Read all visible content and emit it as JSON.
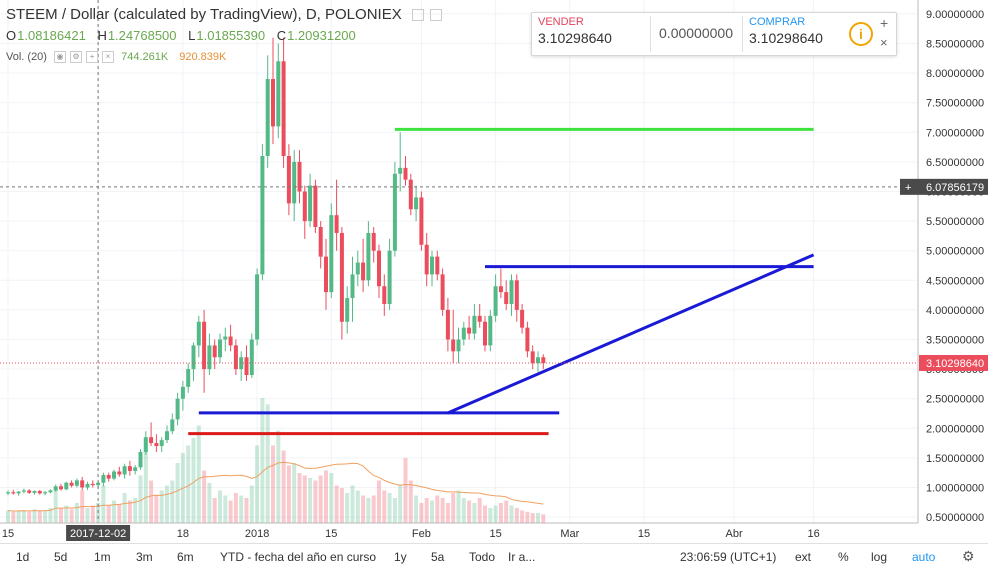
{
  "header": {
    "title": "STEEM / Dollar (calculated by TradingView), D, POLONIEX",
    "ohlc": [
      {
        "label": "O",
        "value": "1.08186421"
      },
      {
        "label": "H",
        "value": "1.24768500"
      },
      {
        "label": "L",
        "value": "1.01855390"
      },
      {
        "label": "C",
        "value": "1.20931200"
      }
    ],
    "volume_label": "Vol. (20)",
    "volume_value": "744.261K",
    "volume_ma": "920.839K"
  },
  "trade": {
    "sell_label": "VENDER",
    "sell_price": "3.10298640",
    "spread": "0.00000000",
    "buy_label": "COMPRAR",
    "buy_price": "3.10298640"
  },
  "crosshair_price": "6.07856179",
  "last_price": "3.10298640",
  "toolbar": {
    "ranges": [
      "1d",
      "5d",
      "1m",
      "3m",
      "6m",
      "YTD - fecha del año en curso",
      "1y",
      "5a",
      "Todo",
      "Ir a..."
    ],
    "time": "23:06:59 (UTC+1)",
    "ext": "ext",
    "pct": "%",
    "log": "log",
    "auto": "auto"
  },
  "colors": {
    "up": "#53b987",
    "down": "#eb4d5c",
    "blue": "#1a1ad6",
    "green": "#3fe33f",
    "red": "#dd1a1a",
    "last_price": "#eb4d5c",
    "volume_ma": "#f0a060",
    "accent": "#2196f3"
  },
  "chart_data": {
    "type": "candlestick",
    "symbol": "STEEM / Dollar",
    "interval": "D",
    "ylim": [
      0.4,
      9.1
    ],
    "yticks": [
      "9.00000000",
      "8.50000000",
      "8.00000000",
      "7.50000000",
      "7.00000000",
      "6.50000000",
      "6.00000000",
      "5.50000000",
      "5.00000000",
      "4.50000000",
      "4.00000000",
      "3.50000000",
      "3.00000000",
      "2.50000000",
      "2.00000000",
      "1.50000000",
      "1.00000000",
      "0.50000000"
    ],
    "xticks": [
      {
        "label": "15",
        "date": "2017-11-15"
      },
      {
        "label": "2017-12-02",
        "date": "2017-12-02"
      },
      {
        "label": "18",
        "date": "2017-12-18"
      },
      {
        "label": "2018",
        "date": "2018-01-01"
      },
      {
        "label": "15",
        "date": "2018-01-15"
      },
      {
        "label": "Feb",
        "date": "2018-02-01"
      },
      {
        "label": "15",
        "date": "2018-02-15"
      },
      {
        "label": "Mar",
        "date": "2018-03-01"
      },
      {
        "label": "15",
        "date": "2018-03-15"
      },
      {
        "label": "Abr",
        "date": "2018-04-01"
      },
      {
        "label": "16",
        "date": "2018-04-16"
      }
    ],
    "candles": [
      [
        "2017-11-15",
        0.9,
        0.95,
        0.87,
        0.92
      ],
      [
        "2017-11-16",
        0.92,
        0.96,
        0.88,
        0.9
      ],
      [
        "2017-11-17",
        0.9,
        0.94,
        0.86,
        0.93
      ],
      [
        "2017-11-18",
        0.93,
        0.98,
        0.9,
        0.95
      ],
      [
        "2017-11-19",
        0.95,
        0.97,
        0.89,
        0.91
      ],
      [
        "2017-11-20",
        0.91,
        0.95,
        0.88,
        0.94
      ],
      [
        "2017-11-21",
        0.94,
        0.96,
        0.88,
        0.9
      ],
      [
        "2017-11-22",
        0.9,
        0.94,
        0.87,
        0.92
      ],
      [
        "2017-11-23",
        0.92,
        0.97,
        0.9,
        0.95
      ],
      [
        "2017-11-24",
        0.95,
        1.05,
        0.93,
        1.02
      ],
      [
        "2017-11-25",
        1.02,
        1.06,
        0.95,
        0.97
      ],
      [
        "2017-11-26",
        0.97,
        1.1,
        0.95,
        1.08
      ],
      [
        "2017-11-27",
        1.08,
        1.12,
        1.0,
        1.03
      ],
      [
        "2017-11-28",
        1.03,
        1.15,
        1.0,
        1.12
      ],
      [
        "2017-11-29",
        1.12,
        1.18,
        0.95,
        1.0
      ],
      [
        "2017-11-30",
        1.0,
        1.1,
        0.96,
        1.06
      ],
      [
        "2017-12-01",
        1.06,
        1.12,
        1.0,
        1.04
      ],
      [
        "2017-12-02",
        1.04,
        1.1,
        0.98,
        1.08
      ],
      [
        "2017-12-03",
        1.08,
        1.25,
        1.02,
        1.21
      ],
      [
        "2017-12-04",
        1.21,
        1.25,
        1.1,
        1.15
      ],
      [
        "2017-12-05",
        1.15,
        1.3,
        1.12,
        1.27
      ],
      [
        "2017-12-06",
        1.27,
        1.35,
        1.18,
        1.22
      ],
      [
        "2017-12-07",
        1.22,
        1.4,
        1.15,
        1.36
      ],
      [
        "2017-12-08",
        1.36,
        1.45,
        1.2,
        1.28
      ],
      [
        "2017-12-09",
        1.28,
        1.38,
        1.22,
        1.34
      ],
      [
        "2017-12-10",
        1.34,
        1.65,
        1.3,
        1.6
      ],
      [
        "2017-12-11",
        1.6,
        1.95,
        1.55,
        1.85
      ],
      [
        "2017-12-12",
        1.85,
        2.1,
        1.7,
        1.75
      ],
      [
        "2017-12-13",
        1.75,
        1.9,
        1.6,
        1.7
      ],
      [
        "2017-12-14",
        1.7,
        1.85,
        1.6,
        1.8
      ],
      [
        "2017-12-15",
        1.8,
        2.05,
        1.75,
        1.95
      ],
      [
        "2017-12-16",
        1.95,
        2.25,
        1.9,
        2.15
      ],
      [
        "2017-12-17",
        2.15,
        2.6,
        2.05,
        2.5
      ],
      [
        "2017-12-18",
        2.5,
        2.8,
        2.3,
        2.7
      ],
      [
        "2017-12-19",
        2.7,
        3.1,
        2.6,
        3.0
      ],
      [
        "2017-12-20",
        3.0,
        3.45,
        2.8,
        3.4
      ],
      [
        "2017-12-21",
        3.4,
        3.9,
        3.2,
        3.8
      ],
      [
        "2017-12-22",
        3.8,
        4.0,
        2.6,
        3.0
      ],
      [
        "2017-12-23",
        3.0,
        3.6,
        2.9,
        3.4
      ],
      [
        "2017-12-24",
        3.4,
        3.5,
        3.0,
        3.2
      ],
      [
        "2017-12-25",
        3.2,
        3.6,
        3.1,
        3.5
      ],
      [
        "2017-12-26",
        3.5,
        3.7,
        3.3,
        3.55
      ],
      [
        "2017-12-27",
        3.55,
        3.75,
        3.3,
        3.4
      ],
      [
        "2017-12-28",
        3.4,
        3.5,
        2.9,
        3.0
      ],
      [
        "2017-12-29",
        3.0,
        3.3,
        2.8,
        3.2
      ],
      [
        "2017-12-30",
        3.2,
        3.4,
        2.8,
        2.9
      ],
      [
        "2017-12-31",
        2.9,
        3.6,
        2.85,
        3.5
      ],
      [
        "2018-01-01",
        3.5,
        4.7,
        3.4,
        4.6
      ],
      [
        "2018-01-02",
        4.6,
        6.8,
        4.5,
        6.6
      ],
      [
        "2018-01-03",
        6.6,
        8.3,
        6.4,
        7.9
      ],
      [
        "2018-01-04",
        7.9,
        8.6,
        6.8,
        7.1
      ],
      [
        "2018-01-05",
        7.1,
        8.5,
        6.9,
        8.2
      ],
      [
        "2018-01-06",
        8.2,
        8.6,
        6.4,
        6.6
      ],
      [
        "2018-01-07",
        6.6,
        6.8,
        5.6,
        5.8
      ],
      [
        "2018-01-08",
        5.8,
        6.7,
        5.5,
        6.5
      ],
      [
        "2018-01-09",
        6.5,
        6.7,
        5.8,
        6.0
      ],
      [
        "2018-01-10",
        6.0,
        6.1,
        5.2,
        5.5
      ],
      [
        "2018-01-11",
        5.5,
        6.3,
        5.4,
        6.1
      ],
      [
        "2018-01-12",
        6.1,
        6.2,
        5.3,
        5.4
      ],
      [
        "2018-01-13",
        5.4,
        5.5,
        4.7,
        4.9
      ],
      [
        "2018-01-14",
        4.9,
        5.2,
        4.0,
        4.3
      ],
      [
        "2018-01-15",
        4.3,
        5.8,
        4.2,
        5.6
      ],
      [
        "2018-01-16",
        5.6,
        6.2,
        5.0,
        5.3
      ],
      [
        "2018-01-17",
        5.3,
        5.4,
        3.5,
        3.8
      ],
      [
        "2018-01-18",
        3.8,
        4.4,
        3.6,
        4.2
      ],
      [
        "2018-01-19",
        4.2,
        4.9,
        3.8,
        4.6
      ],
      [
        "2018-01-20",
        4.6,
        5.0,
        4.4,
        4.8
      ],
      [
        "2018-01-21",
        4.8,
        5.2,
        4.3,
        4.5
      ],
      [
        "2018-01-22",
        4.5,
        5.5,
        4.4,
        5.3
      ],
      [
        "2018-01-23",
        5.3,
        5.4,
        4.8,
        5.0
      ],
      [
        "2018-01-24",
        5.0,
        5.1,
        4.2,
        4.4
      ],
      [
        "2018-01-25",
        4.4,
        4.6,
        3.9,
        4.1
      ],
      [
        "2018-01-26",
        4.1,
        5.2,
        4.0,
        5.0
      ],
      [
        "2018-01-27",
        5.0,
        6.5,
        4.9,
        6.3
      ],
      [
        "2018-01-28",
        6.3,
        7.0,
        6.0,
        6.4
      ],
      [
        "2018-01-29",
        6.4,
        6.6,
        6.1,
        6.2
      ],
      [
        "2018-01-30",
        6.2,
        6.3,
        5.6,
        5.7
      ],
      [
        "2018-01-31",
        5.7,
        6.1,
        5.5,
        5.9
      ],
      [
        "2018-02-01",
        5.9,
        6.0,
        5.0,
        5.1
      ],
      [
        "2018-02-02",
        5.1,
        5.3,
        4.4,
        4.6
      ],
      [
        "2018-02-03",
        4.6,
        5.0,
        4.4,
        4.9
      ],
      [
        "2018-02-04",
        4.9,
        5.0,
        4.5,
        4.6
      ],
      [
        "2018-02-05",
        4.6,
        4.7,
        3.9,
        4.0
      ],
      [
        "2018-02-06",
        4.0,
        4.2,
        3.3,
        3.5
      ],
      [
        "2018-02-07",
        3.5,
        4.0,
        3.1,
        3.3
      ],
      [
        "2018-02-08",
        3.3,
        3.7,
        3.1,
        3.5
      ],
      [
        "2018-02-09",
        3.5,
        3.8,
        3.4,
        3.7
      ],
      [
        "2018-02-10",
        3.7,
        3.9,
        3.5,
        3.6
      ],
      [
        "2018-02-11",
        3.6,
        4.1,
        3.5,
        3.9
      ],
      [
        "2018-02-12",
        3.9,
        4.1,
        3.7,
        3.8
      ],
      [
        "2018-02-13",
        3.8,
        3.9,
        3.3,
        3.4
      ],
      [
        "2018-02-14",
        3.4,
        4.0,
        3.3,
        3.9
      ],
      [
        "2018-02-15",
        3.9,
        4.6,
        3.8,
        4.4
      ],
      [
        "2018-02-16",
        4.4,
        4.7,
        4.2,
        4.3
      ],
      [
        "2018-02-17",
        4.3,
        4.5,
        4.0,
        4.1
      ],
      [
        "2018-02-18",
        4.1,
        4.6,
        3.9,
        4.5
      ],
      [
        "2018-02-19",
        4.5,
        4.6,
        3.8,
        4.0
      ],
      [
        "2018-02-20",
        4.0,
        4.1,
        3.6,
        3.7
      ],
      [
        "2018-02-21",
        3.7,
        3.8,
        3.2,
        3.3
      ],
      [
        "2018-02-22",
        3.3,
        3.4,
        3.0,
        3.1
      ],
      [
        "2018-02-23",
        3.1,
        3.3,
        2.95,
        3.2
      ],
      [
        "2018-02-24",
        3.2,
        3.25,
        3.0,
        3.1
      ]
    ],
    "volume": [
      0.1,
      0.09,
      0.1,
      0.1,
      0.09,
      0.11,
      0.1,
      0.1,
      0.12,
      0.28,
      0.12,
      0.14,
      0.11,
      0.16,
      0.26,
      0.12,
      0.14,
      0.16,
      0.3,
      0.14,
      0.18,
      0.15,
      0.24,
      0.18,
      0.2,
      0.38,
      0.62,
      0.34,
      0.22,
      0.26,
      0.3,
      0.34,
      0.48,
      0.56,
      0.62,
      0.68,
      0.78,
      0.42,
      0.32,
      0.2,
      0.26,
      0.22,
      0.18,
      0.24,
      0.22,
      0.2,
      0.3,
      0.62,
      1.0,
      0.95,
      0.62,
      0.74,
      0.58,
      0.46,
      0.48,
      0.4,
      0.38,
      0.36,
      0.34,
      0.38,
      0.42,
      0.4,
      0.3,
      0.28,
      0.24,
      0.3,
      0.26,
      0.22,
      0.2,
      0.22,
      0.34,
      0.26,
      0.24,
      0.2,
      0.3,
      0.52,
      0.34,
      0.22,
      0.16,
      0.2,
      0.18,
      0.22,
      0.2,
      0.16,
      0.24,
      0.26,
      0.2,
      0.18,
      0.16,
      0.2,
      0.14,
      0.12,
      0.14,
      0.16,
      0.18,
      0.14,
      0.12,
      0.1,
      0.09,
      0.08,
      0.08,
      0.07
    ],
    "drawings": [
      {
        "kind": "horizontal",
        "color": "green",
        "price": 7.05,
        "from": "2018-01-27",
        "to": "2018-04-16"
      },
      {
        "kind": "horizontal",
        "color": "blue",
        "price": 4.73,
        "from": "2018-02-13",
        "to": "2018-04-16"
      },
      {
        "kind": "horizontal",
        "color": "blue",
        "price": 2.26,
        "from": "2017-12-21",
        "to": "2018-02-27"
      },
      {
        "kind": "horizontal",
        "color": "red",
        "price": 1.91,
        "from": "2017-12-19",
        "to": "2018-02-25"
      },
      {
        "kind": "trendline",
        "color": "blue",
        "from": [
          "2018-02-06",
          2.26
        ],
        "to": [
          "2018-04-16",
          4.93
        ]
      }
    ],
    "crosshair": {
      "date": "2017-12-02",
      "price": 6.07856179
    }
  }
}
